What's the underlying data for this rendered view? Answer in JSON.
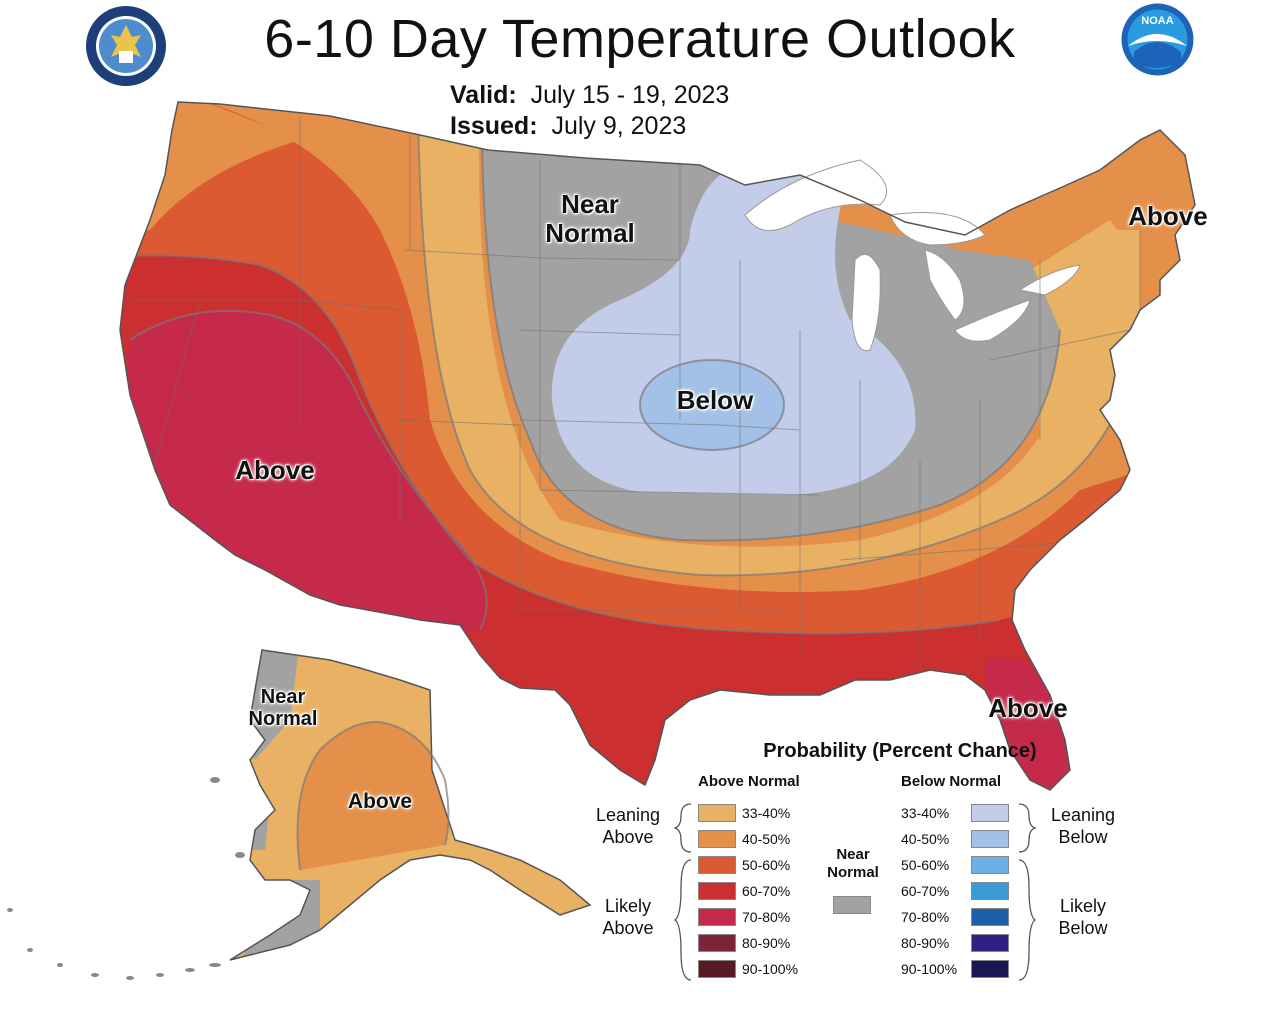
{
  "header": {
    "title": "6-10 Day Temperature Outlook",
    "valid_label": "Valid:",
    "valid_value": "July 15 - 19, 2023",
    "issued_label": "Issued:",
    "issued_value": "July 9, 2023"
  },
  "map_labels": {
    "near_normal_conus": "Near Normal",
    "below_conus": "Below",
    "above_west": "Above",
    "above_northeast": "Above",
    "above_florida": "Above",
    "near_normal_alaska": "Near Normal",
    "above_alaska": "Above"
  },
  "legend": {
    "title": "Probability (Percent Chance)",
    "above_head": "Above Normal",
    "below_head": "Below Normal",
    "near_normal": "Near Normal",
    "leaning_above": "Leaning Above",
    "likely_above": "Likely Above",
    "leaning_below": "Leaning Below",
    "likely_below": "Likely Below",
    "above_bins": [
      {
        "label": "33-40%",
        "color": "#e9b163"
      },
      {
        "label": "40-50%",
        "color": "#e5904a"
      },
      {
        "label": "50-60%",
        "color": "#dc5a31"
      },
      {
        "label": "60-70%",
        "color": "#cc2f2f"
      },
      {
        "label": "70-80%",
        "color": "#c52a4b"
      },
      {
        "label": "80-90%",
        "color": "#7f2438"
      },
      {
        "label": "90-100%",
        "color": "#5a1a22"
      }
    ],
    "below_bins": [
      {
        "label": "33-40%",
        "color": "#c3cde9"
      },
      {
        "label": "40-50%",
        "color": "#a3c1e6"
      },
      {
        "label": "50-60%",
        "color": "#6fb0e4"
      },
      {
        "label": "60-70%",
        "color": "#3a9ad8"
      },
      {
        "label": "70-80%",
        "color": "#1c60a8"
      },
      {
        "label": "80-90%",
        "color": "#2e2183"
      },
      {
        "label": "90-100%",
        "color": "#1a1553"
      }
    ],
    "near_normal_color": "#a2a2a2"
  },
  "logos": {
    "left": "commerce-seal",
    "right": "noaa-logo",
    "noaa_text": "NOAA"
  }
}
